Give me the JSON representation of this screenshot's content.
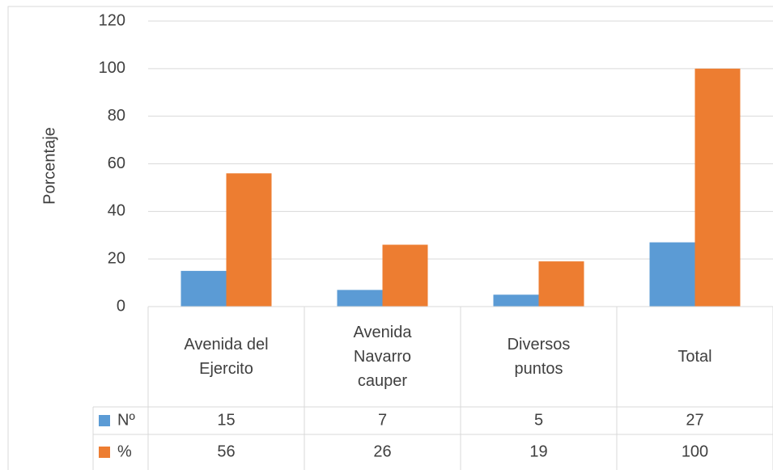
{
  "chart_data": {
    "type": "bar",
    "y_label": "Porcentaje",
    "categories": [
      "Avenida del Ejercito",
      "Avenida Navarro cauper",
      "Diversos puntos",
      "Total"
    ],
    "series": [
      {
        "name": "Nº",
        "color": "#5b9bd5",
        "values": [
          15,
          7,
          5,
          27
        ]
      },
      {
        "name": "%",
        "color": "#ed7d31",
        "values": [
          56,
          26,
          19,
          100
        ]
      }
    ],
    "ylim": [
      0,
      120
    ],
    "yticks": [
      0,
      20,
      40,
      60,
      80,
      100,
      120
    ],
    "grid": true,
    "data_table": true
  }
}
